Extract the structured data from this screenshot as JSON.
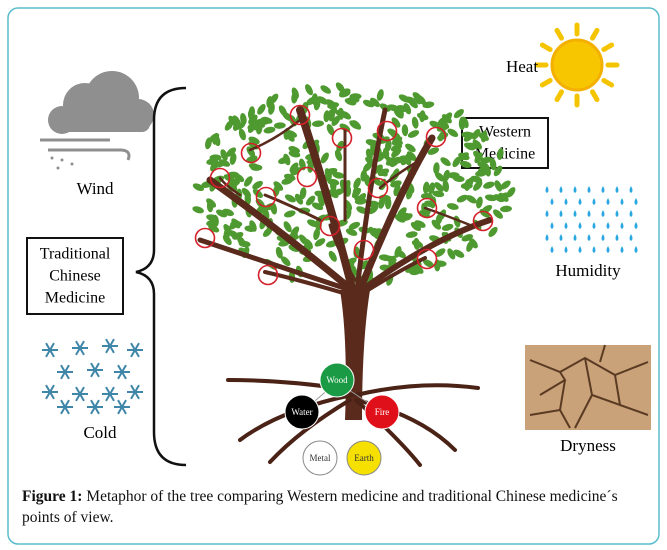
{
  "figure": {
    "heat": "Heat",
    "wind": "Wind",
    "western_medicine": {
      "lines": [
        "Western",
        "Medicine"
      ]
    },
    "humidity": "Humidity",
    "traditional_chinese_medicine": {
      "lines": [
        "Traditional",
        "Chinese",
        "Medicine"
      ]
    },
    "cold": "Cold",
    "dryness": "Dryness",
    "elements": {
      "wood": "Wood",
      "water": "Water",
      "fire": "Fire",
      "metal": "Metal",
      "earth": "Earth"
    }
  },
  "caption": {
    "label": "Figure 1:",
    "text": "Metaphor of the tree comparing Western medicine and traditional Chinese medicine´s points of view."
  }
}
